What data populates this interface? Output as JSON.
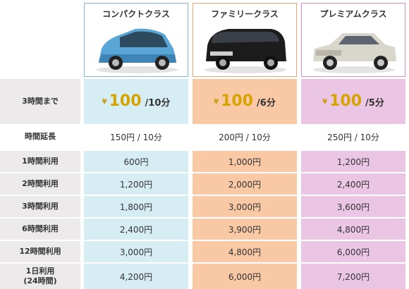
{
  "classes": [
    {
      "name": "コンパクトクラス",
      "price_prefix": "¥",
      "price_amount": "100",
      "price_unit": "/10分"
    },
    {
      "name": "ファミリークラス",
      "price_prefix": "¥",
      "price_amount": "100",
      "price_unit": "/6分"
    },
    {
      "name": "プレミアムクラス",
      "price_prefix": "¥",
      "price_amount": "100",
      "price_unit": "/5分"
    }
  ],
  "rows": [
    {
      "label": "3時間まで",
      "values": [
        "",
        "",
        ""
      ]
    },
    {
      "label": "時間延長",
      "values": [
        "150円 / 10分",
        "200円 / 10分",
        "250円 / 10分"
      ]
    },
    {
      "label": "1時間利用",
      "values": [
        "600円",
        "1,000円",
        "1,200円"
      ]
    },
    {
      "label": "2時間利用",
      "values": [
        "1,200円",
        "2,000円",
        "2,400円"
      ]
    },
    {
      "label": "3時間利用",
      "values": [
        "1,800円",
        "3,000円",
        "3,600円"
      ]
    },
    {
      "label": "6時間利用",
      "values": [
        "2,400円",
        "3,900円",
        "4,800円"
      ]
    },
    {
      "label": "12時間利用",
      "values": [
        "3,000円",
        "4,800円",
        "6,000円"
      ]
    },
    {
      "label": "1日利用\n(24時間)",
      "values": [
        "4,200円",
        "6,000円",
        "7,200円"
      ]
    }
  ],
  "colors": {
    "compact": "#d6edf4",
    "family": "#f9c9a6",
    "premium": "#ebc6e4",
    "label_bg": "#eceaea"
  },
  "icons": {
    "compact": "compact-car-icon",
    "family": "minivan-icon",
    "premium": "sedan-icon"
  }
}
